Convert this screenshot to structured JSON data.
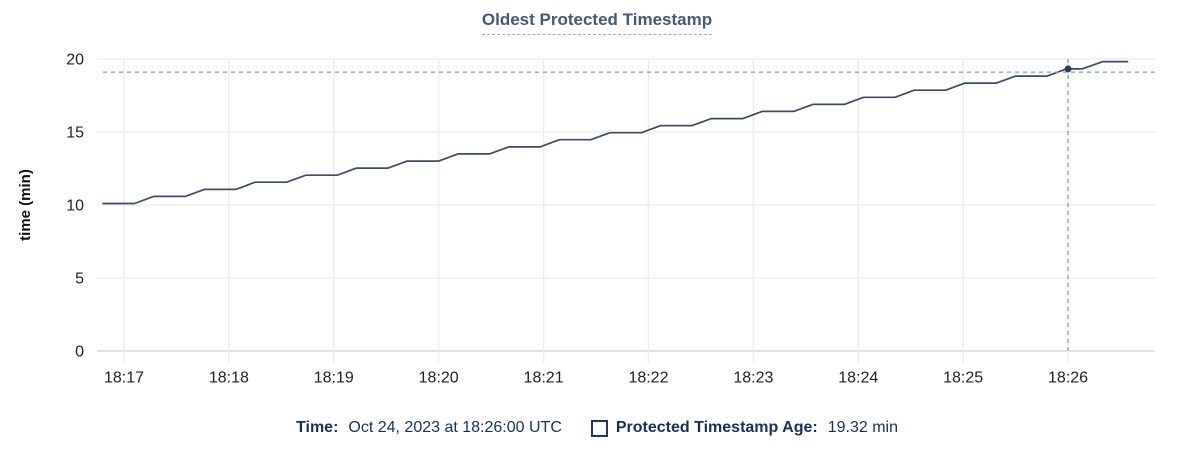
{
  "title": "Oldest Protected Timestamp",
  "colors": {
    "title": "#475976",
    "title_underline": "#9db0c3",
    "series_line": "#3d4d68",
    "marker_dot": "#2c3e59",
    "crosshair": "#859cac",
    "grid": "#ededed",
    "axis_line": "#e2e2e2",
    "tick_text": "#202226",
    "legend_text": "#15325c"
  },
  "chart_data": {
    "type": "line",
    "title": "Oldest Protected Timestamp",
    "xlabel": "",
    "ylabel": "time (min)",
    "ylim": [
      0,
      20
    ],
    "yticks": [
      0,
      5,
      10,
      15,
      20
    ],
    "grid": true,
    "legend_position": "bottom",
    "x_ticks": [
      "18:17",
      "18:18",
      "18:19",
      "18:20",
      "18:21",
      "18:22",
      "18:23",
      "18:24",
      "18:25",
      "18:26"
    ],
    "x_first_tick_s": 12,
    "x_tick_interval_s": 60,
    "x_start_time_label": "18:16:48 UTC",
    "series": [
      {
        "name": "Protected Timestamp Age",
        "color": "#3d4d68",
        "points": [
          [
            0,
            10.1
          ],
          [
            18,
            10.1
          ],
          [
            29,
            10.59
          ],
          [
            47,
            10.59
          ],
          [
            58,
            11.07
          ],
          [
            76,
            11.07
          ],
          [
            87,
            11.56
          ],
          [
            105,
            11.56
          ],
          [
            116,
            12.04
          ],
          [
            134,
            12.04
          ],
          [
            145,
            12.53
          ],
          [
            163,
            12.53
          ],
          [
            174,
            13.01
          ],
          [
            192,
            13.01
          ],
          [
            203,
            13.5
          ],
          [
            221,
            13.5
          ],
          [
            232,
            13.98
          ],
          [
            250,
            13.98
          ],
          [
            261,
            14.47
          ],
          [
            279,
            14.47
          ],
          [
            290,
            14.95
          ],
          [
            308,
            14.95
          ],
          [
            319,
            15.44
          ],
          [
            337,
            15.44
          ],
          [
            348,
            15.92
          ],
          [
            366,
            15.92
          ],
          [
            377,
            16.41
          ],
          [
            395,
            16.41
          ],
          [
            406,
            16.89
          ],
          [
            424,
            16.89
          ],
          [
            435,
            17.38
          ],
          [
            453,
            17.38
          ],
          [
            464,
            17.86
          ],
          [
            482,
            17.86
          ],
          [
            493,
            18.35
          ],
          [
            511,
            18.35
          ],
          [
            522,
            18.83
          ],
          [
            540,
            18.83
          ],
          [
            551,
            19.32
          ],
          [
            560,
            19.32
          ],
          [
            572,
            19.82
          ],
          [
            586,
            19.82
          ]
        ]
      }
    ],
    "highlight": {
      "t_s": 552,
      "value": 19.32,
      "hline_value": 19.1,
      "time_label": "Oct 24, 2023 at 18:26:00 UTC"
    }
  },
  "legend": {
    "time_label": "Time:",
    "time_value": "Oct 24, 2023 at 18:26:00 UTC",
    "series_label": "Protected Timestamp Age:",
    "series_value": "19.32 min"
  }
}
